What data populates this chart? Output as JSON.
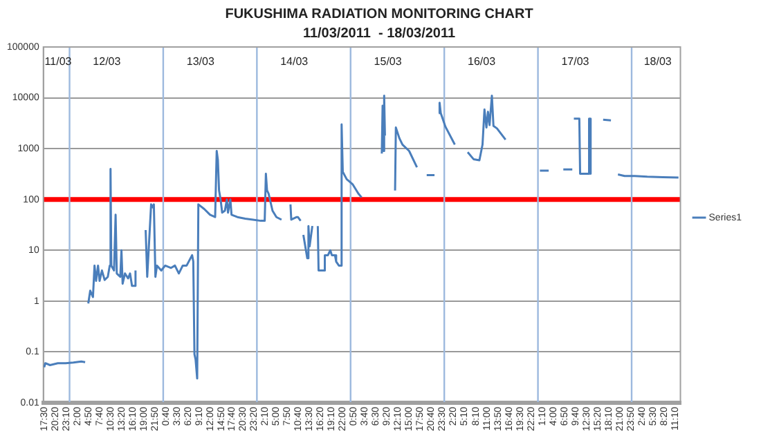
{
  "chart_data": {
    "type": "line",
    "title": "FUKUSHIMA RADIATION MONITORING CHART",
    "subtitle": "11/03/2011  - 18/03/2011",
    "log": "y",
    "grid": "y",
    "legend": "right",
    "xlim": [
      "2011-03-11T17:18",
      "2011-03-18T12:30"
    ],
    "ylim": [
      0.01,
      100000
    ],
    "yticks": [
      0.01,
      0.1,
      1,
      10,
      100,
      1000,
      10000,
      100000
    ],
    "xticks": [
      {
        "value": "2011-03-11T17:30",
        "label": "17:30"
      },
      {
        "value": "2011-03-11T20:20",
        "label": "20:20"
      },
      {
        "value": "2011-03-11T23:10",
        "label": "23:10"
      },
      {
        "value": "2011-03-12T02:00",
        "label": "2:00"
      },
      {
        "value": "2011-03-12T04:50",
        "label": "4:50"
      },
      {
        "value": "2011-03-12T07:40",
        "label": "7:40"
      },
      {
        "value": "2011-03-12T10:30",
        "label": "10:30"
      },
      {
        "value": "2011-03-12T13:20",
        "label": "13:20"
      },
      {
        "value": "2011-03-12T16:10",
        "label": "16:10"
      },
      {
        "value": "2011-03-12T19:00",
        "label": "19:00"
      },
      {
        "value": "2011-03-12T21:50",
        "label": "21:50"
      },
      {
        "value": "2011-03-13T00:40",
        "label": "0:40"
      },
      {
        "value": "2011-03-13T03:30",
        "label": "3:30"
      },
      {
        "value": "2011-03-13T06:20",
        "label": "6:20"
      },
      {
        "value": "2011-03-13T09:10",
        "label": "9:10"
      },
      {
        "value": "2011-03-13T12:00",
        "label": "12:00"
      },
      {
        "value": "2011-03-13T14:50",
        "label": "14:50"
      },
      {
        "value": "2011-03-13T17:40",
        "label": "17:40"
      },
      {
        "value": "2011-03-13T20:30",
        "label": "20:30"
      },
      {
        "value": "2011-03-13T23:20",
        "label": "23:20"
      },
      {
        "value": "2011-03-14T02:10",
        "label": "2:10"
      },
      {
        "value": "2011-03-14T05:00",
        "label": "5:00"
      },
      {
        "value": "2011-03-14T07:50",
        "label": "7:50"
      },
      {
        "value": "2011-03-14T10:40",
        "label": "10:40"
      },
      {
        "value": "2011-03-14T13:30",
        "label": "13:30"
      },
      {
        "value": "2011-03-14T16:20",
        "label": "16:20"
      },
      {
        "value": "2011-03-14T19:10",
        "label": "19:10"
      },
      {
        "value": "2011-03-14T22:00",
        "label": "22:00"
      },
      {
        "value": "2011-03-15T00:50",
        "label": "0:50"
      },
      {
        "value": "2011-03-15T03:40",
        "label": "3:40"
      },
      {
        "value": "2011-03-15T06:30",
        "label": "6:30"
      },
      {
        "value": "2011-03-15T09:20",
        "label": "9:20"
      },
      {
        "value": "2011-03-15T12:10",
        "label": "12:10"
      },
      {
        "value": "2011-03-15T15:00",
        "label": "15:00"
      },
      {
        "value": "2011-03-15T17:50",
        "label": "17:50"
      },
      {
        "value": "2011-03-15T20:40",
        "label": "20:40"
      },
      {
        "value": "2011-03-15T23:30",
        "label": "23:30"
      },
      {
        "value": "2011-03-16T02:20",
        "label": "2:20"
      },
      {
        "value": "2011-03-16T05:10",
        "label": "5:10"
      },
      {
        "value": "2011-03-16T08:10",
        "label": "8:10"
      },
      {
        "value": "2011-03-16T11:00",
        "label": "11:00"
      },
      {
        "value": "2011-03-16T13:50",
        "label": "13:50"
      },
      {
        "value": "2011-03-16T16:40",
        "label": "16:40"
      },
      {
        "value": "2011-03-16T19:30",
        "label": "19:30"
      },
      {
        "value": "2011-03-16T22:20",
        "label": "22:20"
      },
      {
        "value": "2011-03-17T01:10",
        "label": "1:10"
      },
      {
        "value": "2011-03-17T04:00",
        "label": "4:00"
      },
      {
        "value": "2011-03-17T06:50",
        "label": "6:50"
      },
      {
        "value": "2011-03-17T09:40",
        "label": "9:40"
      },
      {
        "value": "2011-03-17T12:30",
        "label": "12:30"
      },
      {
        "value": "2011-03-17T15:20",
        "label": "15:20"
      },
      {
        "value": "2011-03-17T18:10",
        "label": "18:10"
      },
      {
        "value": "2011-03-17T21:00",
        "label": "21:00"
      },
      {
        "value": "2011-03-17T23:50",
        "label": "23:50"
      },
      {
        "value": "2011-03-18T02:40",
        "label": "2:40"
      },
      {
        "value": "2011-03-18T05:30",
        "label": "5:30"
      },
      {
        "value": "2011-03-18T08:20",
        "label": "8:20"
      },
      {
        "value": "2011-03-18T11:10",
        "label": "11:10"
      }
    ],
    "ref_lines": [
      {
        "axis": "y",
        "value": 100,
        "color": "#ff0000"
      },
      {
        "axis": "x",
        "value": "2011-03-12T00:00",
        "color": "#9db9de"
      },
      {
        "axis": "x",
        "value": "2011-03-13T00:00",
        "color": "#9db9de"
      },
      {
        "axis": "x",
        "value": "2011-03-14T00:00",
        "color": "#9db9de"
      },
      {
        "axis": "x",
        "value": "2011-03-15T00:00",
        "color": "#9db9de"
      },
      {
        "axis": "x",
        "value": "2011-03-16T00:00",
        "color": "#9db9de"
      },
      {
        "axis": "x",
        "value": "2011-03-17T00:00",
        "color": "#9db9de"
      },
      {
        "axis": "x",
        "value": "2011-03-18T00:00",
        "color": "#9db9de"
      }
    ],
    "annotations": [
      "11/03",
      "12/03",
      "13/03",
      "14/03",
      "15/03",
      "16/03",
      "17/03",
      "18/03"
    ],
    "series": [
      {
        "name": "Series1",
        "color": "#4a7ebb",
        "x": [
          "2011-03-11T17:30",
          "2011-03-11T17:48",
          "2011-03-11T19:00",
          "2011-03-11T21:00",
          "2011-03-11T23:00",
          "2011-03-12T01:00",
          "2011-03-12T03:00",
          "2011-03-12T04:00",
          "2011-03-12T04:30",
          "2011-03-12T04:48",
          "2011-03-12T05:18",
          "2011-03-12T06:00",
          "2011-03-12T06:24",
          "2011-03-12T06:48",
          "2011-03-12T07:18",
          "2011-03-12T07:42",
          "2011-03-12T08:18",
          "2011-03-12T09:00",
          "2011-03-12T09:48",
          "2011-03-12T10:18",
          "2011-03-12T10:30",
          "2011-03-12T10:42",
          "2011-03-12T11:24",
          "2011-03-12T11:48",
          "2011-03-12T12:06",
          "2011-03-12T13:00",
          "2011-03-12T13:18",
          "2011-03-12T13:36",
          "2011-03-12T14:12",
          "2011-03-12T15:00",
          "2011-03-12T15:30",
          "2011-03-12T16:00",
          "2011-03-12T16:42",
          "2011-03-12T16:54",
          "2011-03-12T18:00",
          "2011-03-12T19:30",
          "2011-03-12T19:54",
          "2011-03-12T20:12",
          "2011-03-12T20:54",
          "2011-03-12T21:18",
          "2011-03-12T21:36",
          "2011-03-12T22:00",
          "2011-03-12T22:24",
          "2011-03-12T23:30",
          "2011-03-13T00:30",
          "2011-03-13T02:00",
          "2011-03-13T03:00",
          "2011-03-13T04:00",
          "2011-03-13T05:00",
          "2011-03-13T06:00",
          "2011-03-13T07:00",
          "2011-03-13T07:24",
          "2011-03-13T07:42",
          "2011-03-13T08:00",
          "2011-03-13T08:18",
          "2011-03-13T08:42",
          "2011-03-13T09:00",
          "2011-03-13T10:30",
          "2011-03-13T12:00",
          "2011-03-13T13:18",
          "2011-03-13T13:42",
          "2011-03-13T14:00",
          "2011-03-13T14:18",
          "2011-03-13T14:42",
          "2011-03-13T15:06",
          "2011-03-13T15:48",
          "2011-03-13T16:18",
          "2011-03-13T16:36",
          "2011-03-13T17:12",
          "2011-03-13T17:30",
          "2011-03-13T19:00",
          "2011-03-13T21:00",
          "2011-03-13T23:00",
          "2011-03-14T01:00",
          "2011-03-14T02:00",
          "2011-03-14T02:18",
          "2011-03-14T02:36",
          "2011-03-14T03:00",
          "2011-03-14T04:00",
          "2011-03-14T05:00",
          "2011-03-14T06:18",
          "2011-03-14T07:30",
          "2011-03-14T08:36",
          "2011-03-14T08:48",
          "2011-03-14T10:12",
          "2011-03-14T10:30",
          "2011-03-14T11:12",
          "2011-03-14T11:36",
          "2011-03-14T11:54",
          "2011-03-14T12:54",
          "2011-03-14T13:12",
          "2011-03-14T13:30",
          "2011-03-14T14:12",
          "2011-03-14T15:00",
          "2011-03-14T15:36",
          "2011-03-14T15:48",
          "2011-03-14T16:24",
          "2011-03-14T17:12",
          "2011-03-14T17:24",
          "2011-03-14T18:12",
          "2011-03-14T18:48",
          "2011-03-14T19:12",
          "2011-03-14T20:00",
          "2011-03-14T20:18",
          "2011-03-14T21:00",
          "2011-03-14T21:36",
          "2011-03-14T21:42",
          "2011-03-14T22:00",
          "2011-03-14T23:00",
          "2011-03-15T00:30",
          "2011-03-15T02:00",
          "2011-03-15T02:48",
          "2011-03-15T04:00",
          "2011-03-15T08:00",
          "2011-03-15T08:12",
          "2011-03-15T08:24",
          "2011-03-15T08:36",
          "2011-03-15T08:48",
          "2011-03-15T09:30",
          "2011-03-15T11:24",
          "2011-03-15T11:36",
          "2011-03-15T12:30",
          "2011-03-15T13:18",
          "2011-03-15T15:00",
          "2011-03-15T17:00",
          "2011-03-15T19:00",
          "2011-03-15T19:30",
          "2011-03-15T21:30",
          "2011-03-15T22:06",
          "2011-03-15T22:36",
          "2011-03-15T22:48",
          "2011-03-15T23:06",
          "2011-03-16T00:18",
          "2011-03-16T02:42",
          "2011-03-16T04:00",
          "2011-03-16T06:00",
          "2011-03-16T07:30",
          "2011-03-16T09:00",
          "2011-03-16T09:48",
          "2011-03-16T10:18",
          "2011-03-16T10:48",
          "2011-03-16T11:12",
          "2011-03-16T11:36",
          "2011-03-16T12:12",
          "2011-03-16T12:36",
          "2011-03-16T13:30",
          "2011-03-16T15:42",
          "2011-03-16T20:00",
          "2011-03-17T00:30",
          "2011-03-17T02:45",
          "2011-03-17T04:00",
          "2011-03-17T06:30",
          "2011-03-17T08:48",
          "2011-03-17T09:00",
          "2011-03-17T09:12",
          "2011-03-17T10:36",
          "2011-03-17T10:48",
          "2011-03-17T12:54",
          "2011-03-17T13:06",
          "2011-03-17T13:18",
          "2011-03-17T13:30",
          "2011-03-17T14:00",
          "2011-03-17T16:42",
          "2011-03-17T18:42",
          "2011-03-17T19:30",
          "2011-03-17T20:30",
          "2011-03-17T22:12",
          "2011-03-18T00:48",
          "2011-03-18T04:00",
          "2011-03-18T08:00",
          "2011-03-18T12:00"
        ],
        "values": [
          0.05,
          0.06,
          0.055,
          0.06,
          0.06,
          0.062,
          0.065,
          0.063,
          null,
          0.9,
          1.6,
          1.2,
          5,
          2.5,
          5,
          2.5,
          4,
          2.6,
          3,
          5,
          400,
          5,
          4,
          50,
          3.5,
          3,
          10,
          2.2,
          3.5,
          2.8,
          3.5,
          2,
          2,
          4,
          null,
          25,
          3,
          8,
          80,
          70,
          80,
          3,
          5,
          4,
          5,
          4.5,
          5,
          3.5,
          5,
          5,
          7,
          8,
          6,
          0.09,
          0.07,
          0.03,
          80,
          65,
          50,
          45,
          900,
          600,
          150,
          100,
          55,
          60,
          100,
          55,
          100,
          50,
          45,
          42,
          40,
          38,
          38,
          320,
          150,
          130,
          60,
          45,
          40,
          null,
          80,
          40,
          45,
          45,
          38,
          null,
          20,
          7,
          30,
          12,
          30,
          null,
          30,
          4,
          4,
          4,
          8,
          8,
          10,
          8,
          8,
          6,
          5,
          5,
          3000,
          350,
          250,
          200,
          130,
          110,
          null,
          800,
          7000,
          900,
          11000,
          1800,
          null,
          150,
          2600,
          1600,
          1200,
          900,
          430,
          null,
          300,
          300,
          null,
          5000,
          8000,
          5000,
          2700,
          1200,
          null,
          850,
          620,
          590,
          1200,
          5900,
          2600,
          5300,
          2900,
          11000,
          2800,
          2500,
          1500,
          null,
          370,
          370,
          null,
          390,
          390,
          null,
          3900,
          3900,
          320,
          320,
          3900,
          3900,
          320,
          null,
          3700,
          3600,
          null,
          310,
          290,
          290,
          280,
          275,
          270
        ]
      }
    ]
  }
}
